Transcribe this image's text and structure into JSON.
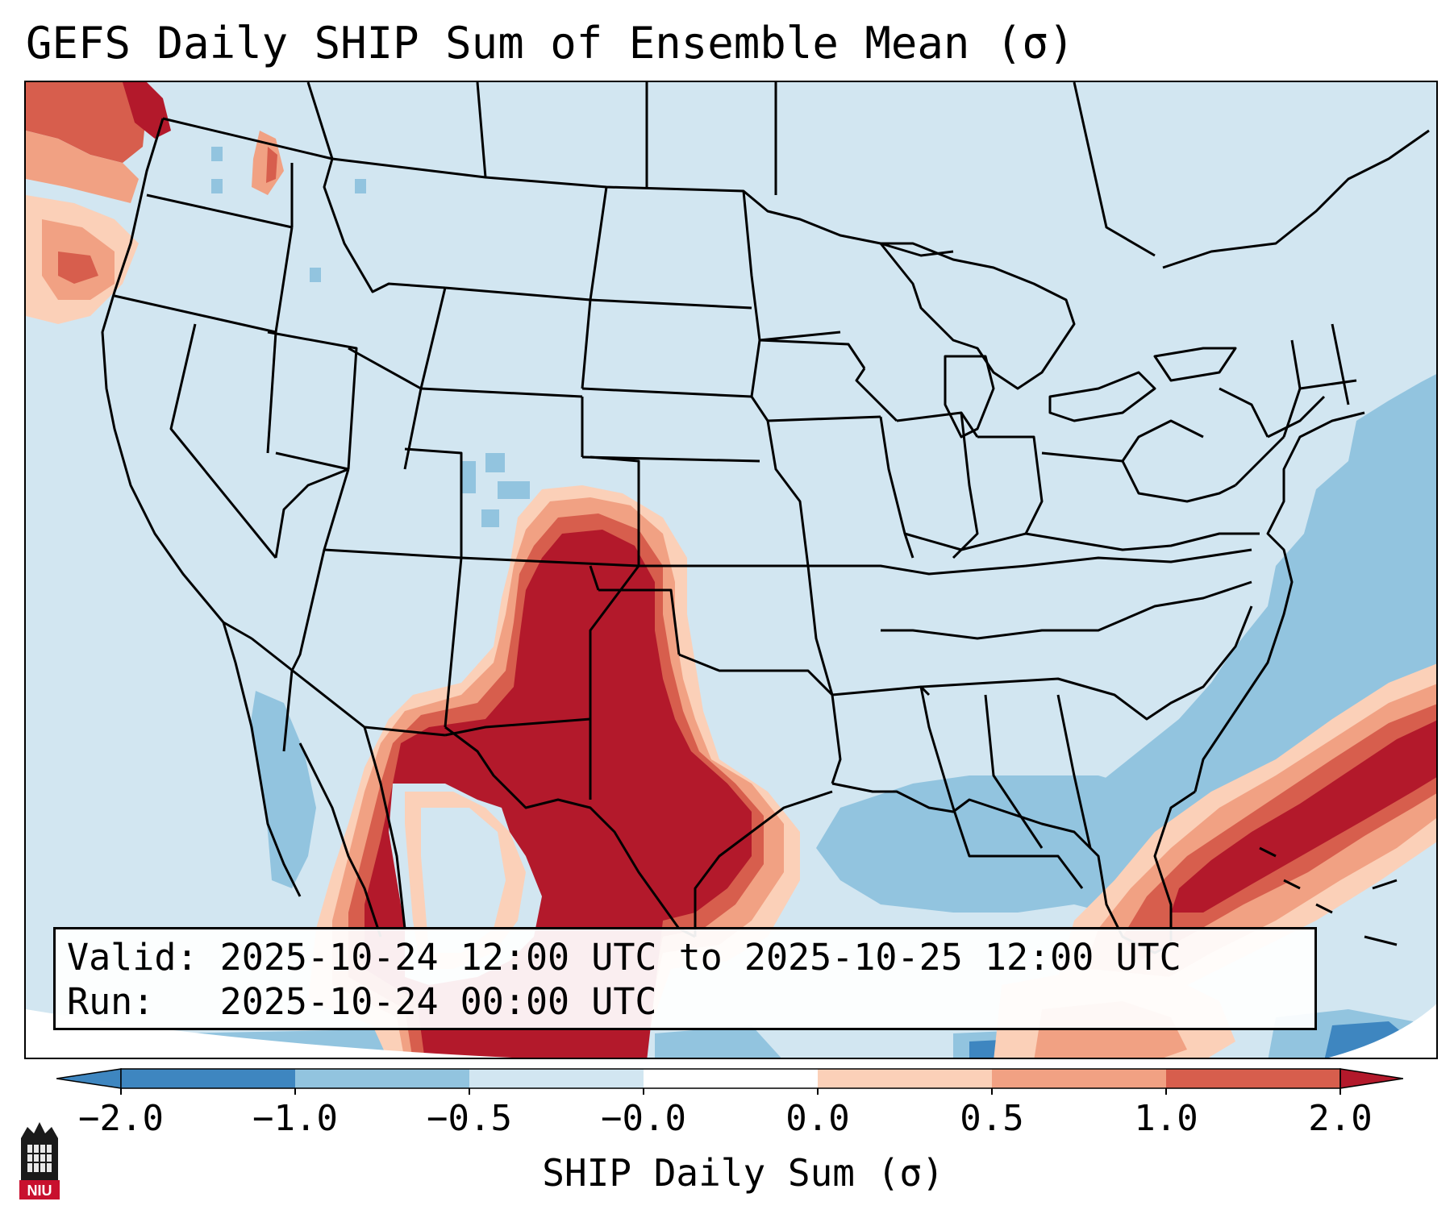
{
  "title": "GEFS Daily SHIP Sum of Ensemble Mean (σ)",
  "info": {
    "valid_label": "Valid:",
    "valid_text": "2025-10-24 12:00 UTC to 2025-10-25 12:00 UTC",
    "run_label": "Run:",
    "run_text": "2025-10-24 00:00 UTC"
  },
  "colorbar": {
    "label": "SHIP Daily Sum (σ)",
    "ticks": [
      "−2.0",
      "−1.0",
      "−0.5",
      "−0.0",
      "0.0",
      "0.5",
      "1.0",
      "2.0"
    ],
    "colors": [
      "#3e86c0",
      "#92c4df",
      "#d2e6f1",
      "#d2e6f1",
      "#fbd0b8",
      "#f1a183",
      "#d75e4d",
      "#b3192b"
    ],
    "extend": "both"
  },
  "colors": {
    "background": "#d2e6f1",
    "strong_positive": "#b3192b",
    "positive": "#d75e4d",
    "weak_positive": "#f1a183",
    "faint_positive": "#fbd0b8",
    "weak_negative": "#92c4df",
    "negative": "#3e86c0",
    "borders": "#000000"
  },
  "logo": {
    "text": "NIU"
  }
}
